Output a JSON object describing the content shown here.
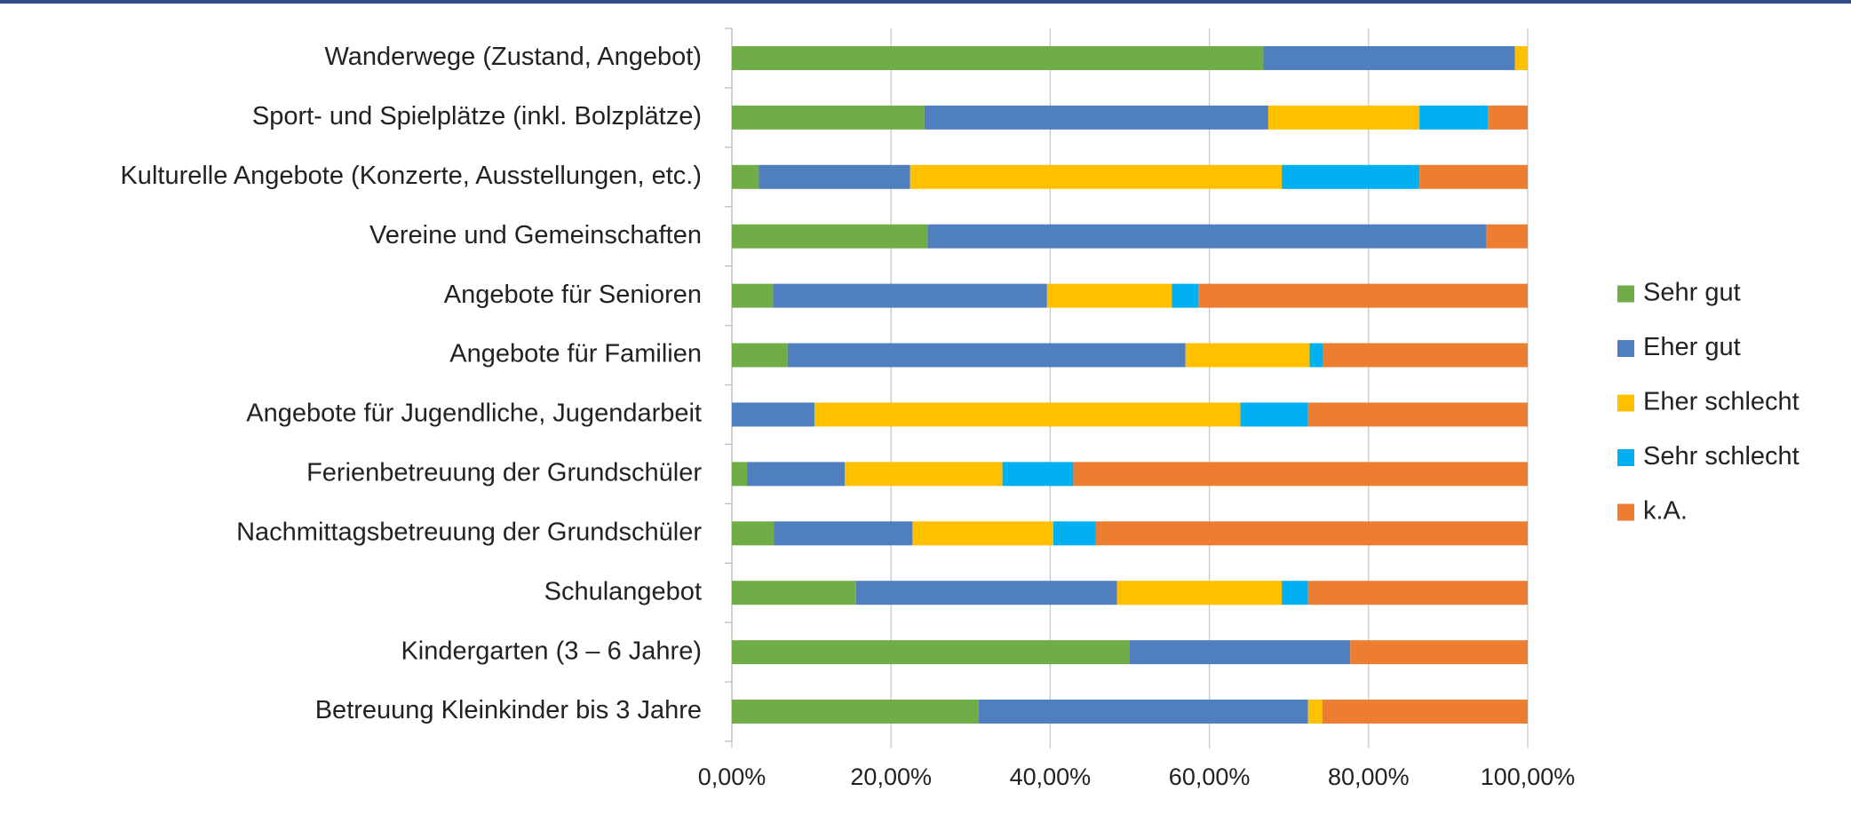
{
  "chart_data": {
    "type": "stacked_barh",
    "categories": [
      "Wanderwege (Zustand, Angebot)",
      "Sport- und Spielplätze (inkl. Bolzplätze)",
      "Kulturelle Angebote (Konzerte, Ausstellungen, etc.)",
      "Vereine und Gemeinschaften",
      "Angebote für Senioren",
      "Angebote für Familien",
      "Angebote für Jugendliche, Jugendarbeit",
      "Ferienbetreuung der Grundschüler",
      "Nachmittagsbetreuung der Grundschüler",
      "Schulangebot",
      "Kindergarten (3 – 6 Jahre)",
      "Betreuung Kleinkinder bis 3 Jahre"
    ],
    "series": [
      {
        "name": "Sehr gut",
        "color": "#70ad47",
        "values": [
          66.8,
          24.2,
          3.4,
          24.6,
          5.2,
          7.0,
          0,
          1.9,
          5.3,
          15.6,
          50.0,
          31.0
        ]
      },
      {
        "name": "Eher gut",
        "color": "#4f7fbf",
        "values": [
          31.6,
          43.2,
          19.0,
          70.2,
          34.4,
          50.0,
          10.4,
          12.3,
          17.4,
          32.8,
          27.7,
          41.4
        ]
      },
      {
        "name": "Eher schlecht",
        "color": "#ffc000",
        "values": [
          1.6,
          19.0,
          46.7,
          0,
          15.7,
          15.6,
          53.5,
          19.8,
          17.7,
          20.7,
          0,
          1.8
        ]
      },
      {
        "name": "Sehr schlecht",
        "color": "#00b0f0",
        "values": [
          0,
          8.6,
          17.3,
          0,
          3.3,
          1.7,
          8.5,
          8.9,
          5.3,
          3.3,
          0,
          0
        ]
      },
      {
        "name": "k.A.",
        "color": "#ed7d31",
        "values": [
          0,
          5.0,
          13.6,
          5.2,
          41.4,
          25.7,
          27.6,
          57.1,
          54.3,
          27.6,
          22.3,
          25.8
        ]
      }
    ],
    "xlim": [
      0,
      100
    ],
    "xticks": [
      {
        "value": 0,
        "label": "0,00%"
      },
      {
        "value": 20,
        "label": "20,00%"
      },
      {
        "value": 40,
        "label": "40,00%"
      },
      {
        "value": 60,
        "label": "60,00%"
      },
      {
        "value": 80,
        "label": "80,00%"
      },
      {
        "value": 100,
        "label": "100,00%"
      }
    ],
    "grid": true,
    "legend": "right"
  }
}
